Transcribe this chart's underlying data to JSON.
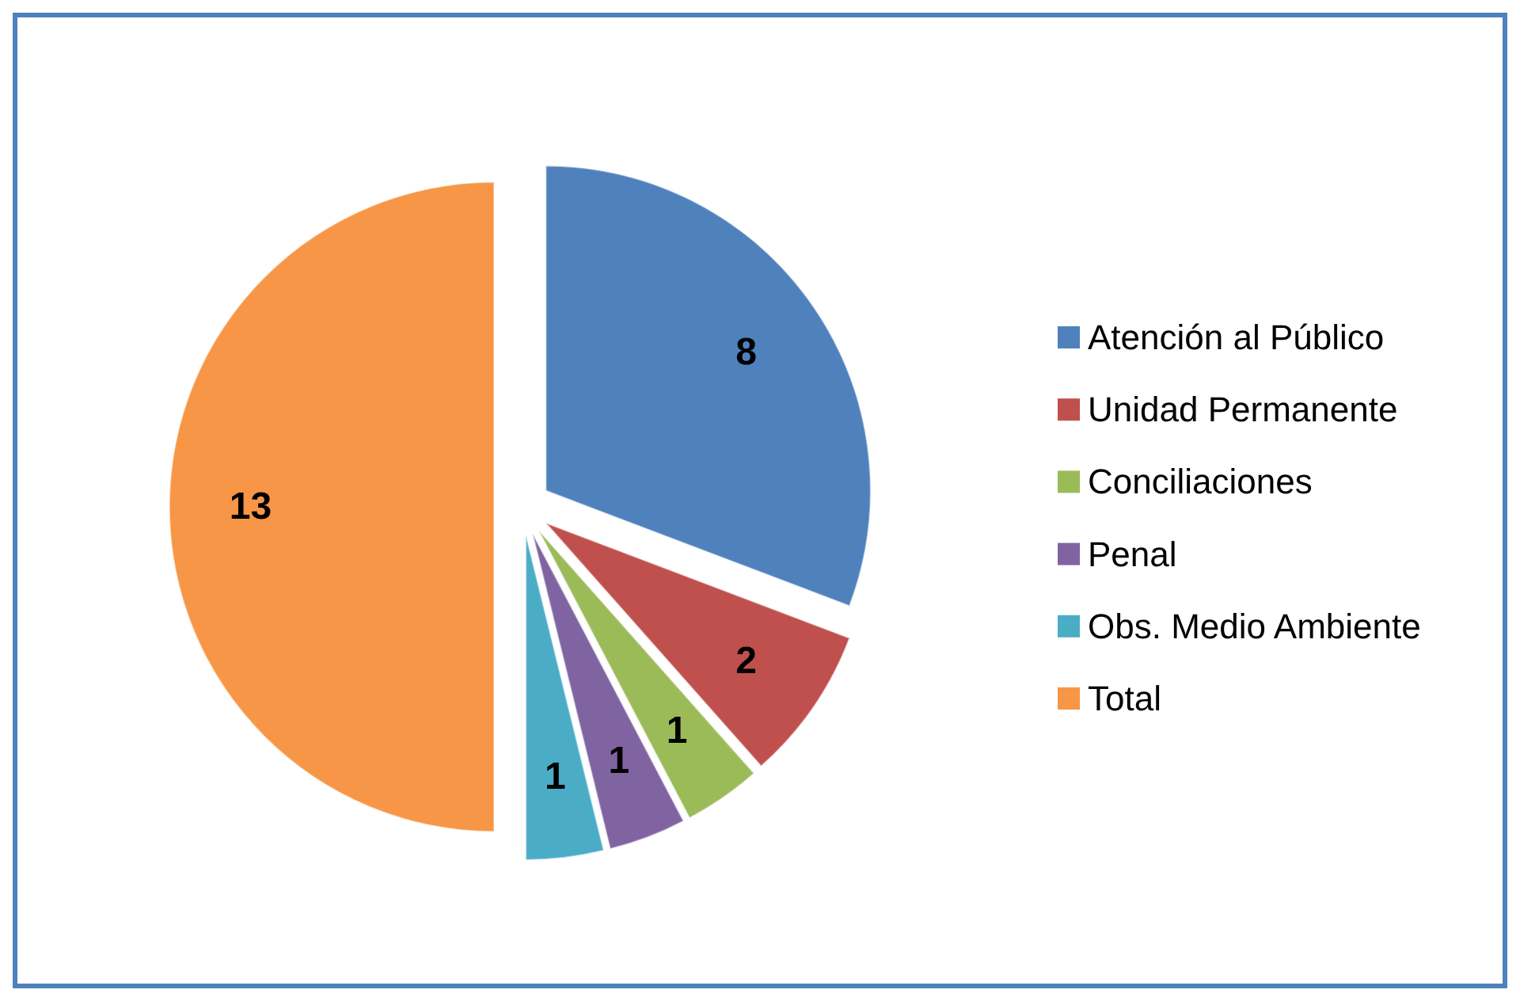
{
  "chart_data": {
    "type": "pie",
    "categories": [
      "Atención al Público",
      "Unidad Permanente",
      "Conciliaciones",
      "Penal",
      "Obs. Medio Ambiente",
      "Total"
    ],
    "values": [
      8,
      2,
      1,
      1,
      1,
      13
    ],
    "colors": [
      "#4f81bd",
      "#c0504d",
      "#9bbb59",
      "#8064a2",
      "#4bacc6",
      "#f79646"
    ],
    "data_labels": true,
    "legend": "right"
  }
}
